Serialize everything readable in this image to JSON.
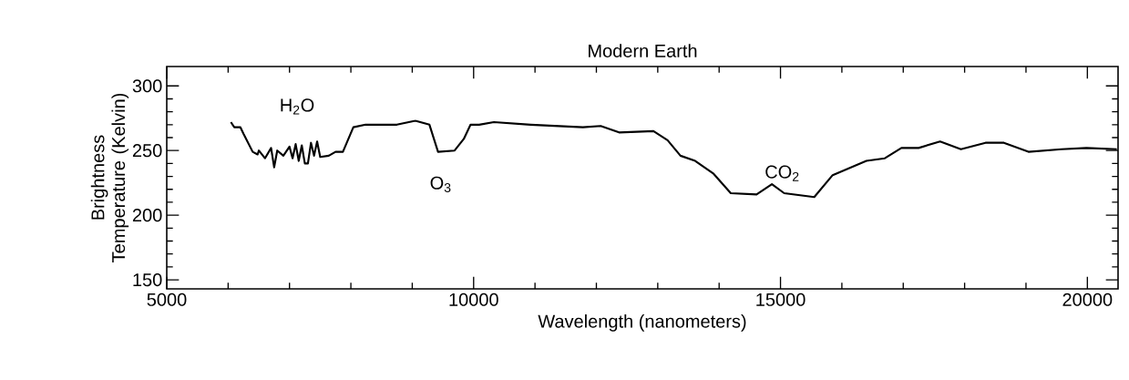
{
  "chart_data": {
    "type": "line",
    "title": "Modern Earth",
    "xlabel": "Wavelength (nanometers)",
    "ylabel": "Brightness Temperature (Kelvin)",
    "xlim": [
      5000,
      20500
    ],
    "ylim": [
      143,
      315
    ],
    "xticks": [
      5000,
      10000,
      15000,
      20000
    ],
    "yticks": [
      150,
      200,
      250,
      300
    ],
    "annotations": [
      "H$_{2}$O",
      "O$_{3}$",
      "CO$_{2}$"
    ],
    "series": [
      {
        "color": "#000000",
        "x": [
          6045,
          6100,
          6200,
          6250,
          6400,
          6480,
          6500,
          6600,
          6700,
          6750,
          6800,
          6900,
          7000,
          7050,
          7100,
          7150,
          7200,
          7250,
          7300,
          7350,
          7400,
          7450,
          7500,
          7640,
          7750,
          7870,
          8040,
          8240,
          8750,
          9050,
          9280,
          9420,
          9690,
          9840,
          9950,
          10090,
          10330,
          10930,
          11780,
          12070,
          12370,
          12930,
          13160,
          13370,
          13610,
          13910,
          14190,
          14610,
          14860,
          15060,
          15550,
          15850,
          16400,
          16700,
          16970,
          17250,
          17600,
          17940,
          18340,
          18640,
          19040,
          19580,
          19985,
          20480
        ],
        "values": [
          272,
          268,
          268,
          263,
          249,
          247,
          250,
          244,
          252,
          237,
          250,
          246,
          253,
          244,
          255,
          242,
          254,
          240,
          240,
          256,
          246,
          257,
          245,
          246,
          249,
          249,
          268,
          270,
          270,
          273,
          270,
          249,
          250,
          259,
          270,
          270,
          272,
          270,
          268,
          269,
          264,
          265,
          258,
          246,
          242,
          232,
          217,
          216,
          224,
          217,
          214,
          231,
          242,
          244,
          252,
          252,
          257,
          251,
          256,
          256,
          249,
          251,
          252,
          251
        ]
      }
    ]
  }
}
